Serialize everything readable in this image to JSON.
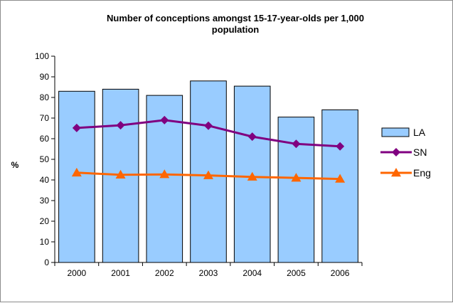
{
  "chart_data": {
    "type": "bar",
    "title": "Number of conceptions amongst 15-17-year-olds per 1,000 population",
    "title_lines": [
      "Number of conceptions amongst 15-17-year-olds per 1,000",
      "population"
    ],
    "ylabel": "%",
    "xlabel": "",
    "ylim": [
      0,
      100
    ],
    "y_ticks": [
      0,
      10,
      20,
      30,
      40,
      50,
      60,
      70,
      80,
      90,
      100
    ],
    "categories": [
      "2000",
      "2001",
      "2002",
      "2003",
      "2004",
      "2005",
      "2006"
    ],
    "series": [
      {
        "name": "LA",
        "type": "bar",
        "color": "#99ccff",
        "values": [
          83,
          84,
          81,
          88,
          85.5,
          70.5,
          74
        ]
      },
      {
        "name": "SN",
        "type": "line",
        "marker": "diamond",
        "color": "#800080",
        "values": [
          65.2,
          66.5,
          69,
          66.3,
          61,
          57.5,
          56.3
        ]
      },
      {
        "name": "Eng",
        "type": "line",
        "marker": "triangle",
        "color": "#ff6600",
        "values": [
          43.5,
          42.5,
          42.7,
          42.2,
          41.5,
          41,
          40.5
        ]
      }
    ],
    "legend_position": "right",
    "grid": false
  }
}
